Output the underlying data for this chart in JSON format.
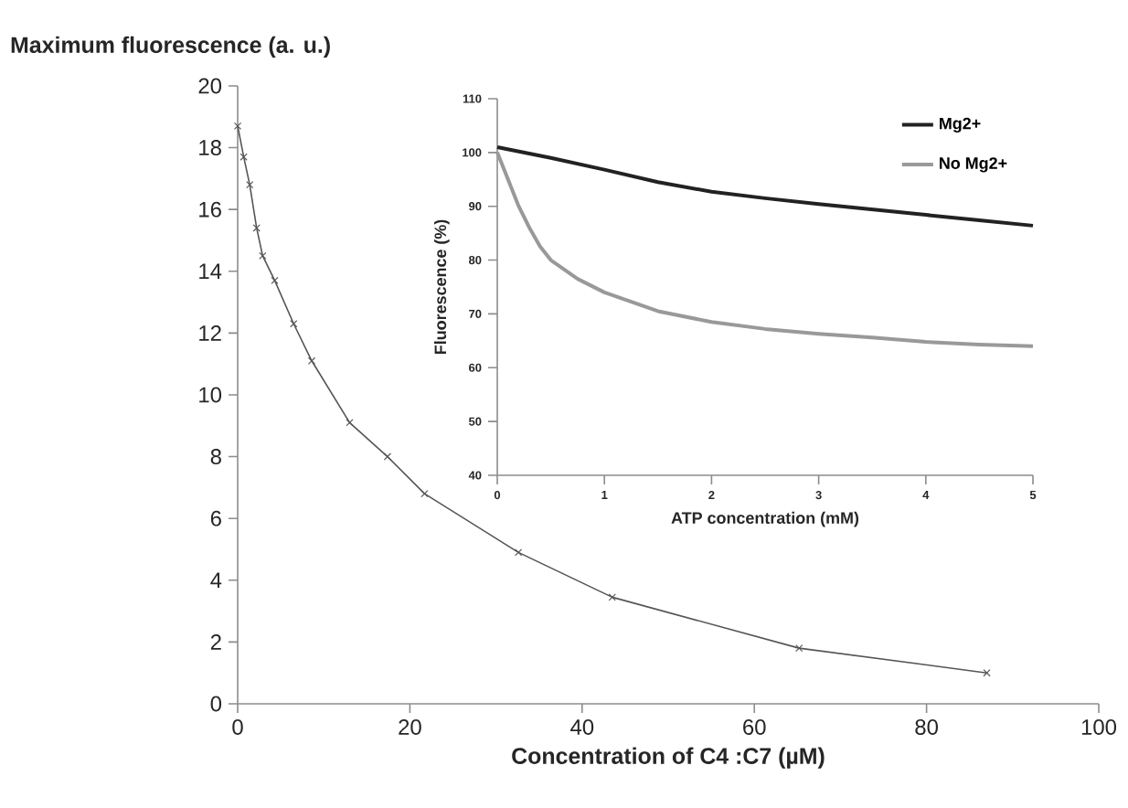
{
  "chart_data": [
    {
      "type": "line",
      "xlabel": "Concentration of C4 :C7 (µM)",
      "ylabel": "Maximum fluorescence (a. u.)",
      "xlim": [
        0,
        100
      ],
      "ylim": [
        0,
        20
      ],
      "xticks": [
        0,
        20,
        40,
        60,
        80,
        100
      ],
      "yticks": [
        0,
        2,
        4,
        6,
        8,
        10,
        12,
        14,
        16,
        18,
        20
      ],
      "grid": false,
      "legend": false,
      "marker": "cross",
      "series": [
        {
          "color": "#555555",
          "x": [
            0,
            0.7,
            1.4,
            2.2,
            2.9,
            4.3,
            6.5,
            8.6,
            13,
            17.4,
            21.7,
            32.6,
            43.5,
            65.2,
            87
          ],
          "values": [
            18.7,
            17.7,
            16.8,
            15.4,
            14.5,
            13.7,
            12.3,
            11.1,
            9.1,
            8.0,
            6.8,
            4.9,
            3.45,
            1.8,
            1.0
          ]
        }
      ]
    },
    {
      "type": "line",
      "xlabel": "ATP concentration (mM)",
      "ylabel": "Fluorescence (%)",
      "xlim": [
        0,
        5
      ],
      "ylim": [
        40,
        110
      ],
      "xticks": [
        0,
        1,
        2,
        3,
        4,
        5
      ],
      "yticks": [
        40,
        50,
        60,
        70,
        80,
        90,
        100,
        110
      ],
      "grid": false,
      "legend": "top right",
      "marker": "none",
      "series": [
        {
          "name": "Mg2+",
          "color": "#222222",
          "x": [
            0,
            0.5,
            1,
            1.5,
            2,
            2.5,
            3,
            3.5,
            4,
            4.5,
            5
          ],
          "values": [
            101,
            99,
            96.8,
            94.5,
            92.7,
            91.5,
            90.4,
            89.4,
            88.4,
            87.4,
            86.4
          ]
        },
        {
          "name": "No Mg2+",
          "color": "#999999",
          "x": [
            0,
            0.1,
            0.2,
            0.3,
            0.4,
            0.5,
            0.75,
            1,
            1.5,
            2,
            2.5,
            3,
            3.5,
            4,
            4.5,
            5
          ],
          "values": [
            100,
            95,
            90,
            86,
            82.5,
            80,
            76.5,
            74,
            70.5,
            68.5,
            67.2,
            66.3,
            65.6,
            64.8,
            64.3,
            64
          ]
        }
      ]
    }
  ]
}
